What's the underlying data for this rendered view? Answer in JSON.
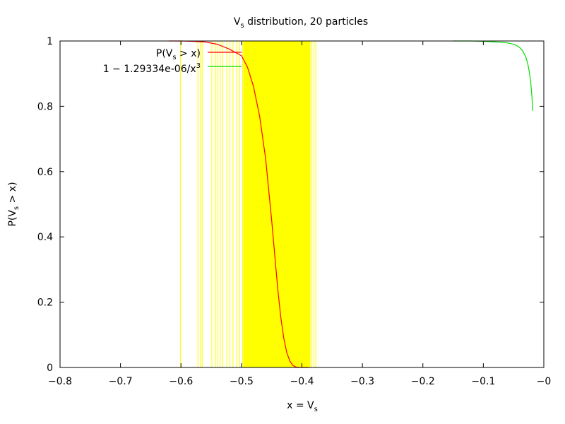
{
  "chart_data": {
    "type": "line",
    "title": {
      "main": "V",
      "sub": "s",
      "rest": " distribution, 20 particles"
    },
    "xlabel": {
      "main": "x = V",
      "sub": "s"
    },
    "ylabel": {
      "pre": "P(V",
      "sub": "s",
      "post": " > x)"
    },
    "xlim": [
      -0.8,
      0
    ],
    "ylim": [
      0,
      1
    ],
    "x_ticks": [
      -0.8,
      -0.7,
      -0.6,
      -0.5,
      -0.4,
      -0.3,
      -0.2,
      -0.1,
      0
    ],
    "x_tick_labels": [
      "−0.8",
      "−0.7",
      "−0.6",
      "−0.5",
      "−0.4",
      "−0.3",
      "−0.2",
      "−0.1",
      "−0"
    ],
    "y_ticks": [
      0,
      0.2,
      0.4,
      0.6,
      0.8,
      1
    ],
    "y_tick_labels": [
      "0",
      "0.2",
      "0.4",
      "0.6",
      "0.8",
      "1"
    ],
    "grid": false,
    "legend_position": "top-left",
    "samples": {
      "color": "#ffff00",
      "x": [
        -0.601,
        -0.572,
        -0.568,
        -0.565,
        -0.549,
        -0.543,
        -0.539,
        -0.535,
        -0.531,
        -0.524,
        -0.519,
        -0.514,
        -0.508,
        -0.503,
        -0.498,
        -0.49,
        -0.46,
        -0.44,
        -0.384,
        -0.38,
        -0.377
      ],
      "band": [
        -0.497,
        -0.386
      ]
    },
    "series": [
      {
        "legend": {
          "pre": "P(V",
          "sub": "s",
          "post": " > x)"
        },
        "color": "#ff0000",
        "x": [
          -0.62,
          -0.6,
          -0.58,
          -0.56,
          -0.54,
          -0.52,
          -0.5,
          -0.49,
          -0.48,
          -0.47,
          -0.46,
          -0.45,
          -0.445,
          -0.44,
          -0.435,
          -0.43,
          -0.425,
          -0.42,
          -0.415,
          -0.41,
          -0.405,
          -0.4,
          -0.395,
          -0.39
        ],
        "y": [
          1,
          1,
          0.999,
          0.997,
          0.99,
          0.975,
          0.955,
          0.92,
          0.86,
          0.77,
          0.64,
          0.45,
          0.345,
          0.24,
          0.155,
          0.09,
          0.045,
          0.02,
          0.006,
          0.0015,
          0.0003,
          0,
          0,
          0
        ]
      },
      {
        "legend": {
          "pre": "1 − 1.29334e-06/x",
          "sup": "3"
        },
        "color": "#00dd00",
        "x": [
          -0.15,
          -0.12,
          -0.1,
          -0.09,
          -0.08,
          -0.07,
          -0.06,
          -0.05,
          -0.045,
          -0.04,
          -0.035,
          -0.03,
          -0.028,
          -0.026,
          -0.024,
          -0.022,
          -0.02,
          -0.019,
          -0.0185,
          -0.0182
        ],
        "y": [
          1,
          1,
          0.999,
          0.998,
          0.997,
          0.996,
          0.994,
          0.99,
          0.986,
          0.98,
          0.97,
          0.952,
          0.94,
          0.926,
          0.906,
          0.879,
          0.838,
          0.811,
          0.796,
          0.786
        ]
      }
    ]
  }
}
